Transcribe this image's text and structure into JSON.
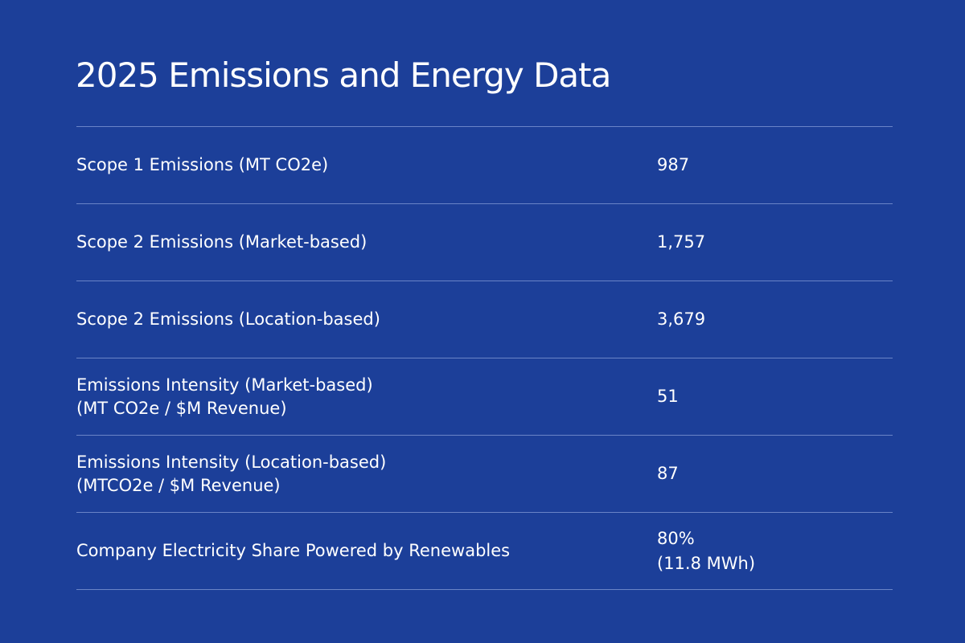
{
  "title": "2025 Emissions and Energy Data",
  "rows": [
    {
      "label": "Scope 1 Emissions (MT CO2e)",
      "value": "987"
    },
    {
      "label": "Scope 2 Emissions (Market-based)",
      "value": "1,757"
    },
    {
      "label": "Scope 2 Emissions (Location-based)",
      "value": "3,679"
    },
    {
      "label": "Emissions Intensity (Market-based)",
      "label_line2": "(MT CO2e / $M Revenue)",
      "value": "51"
    },
    {
      "label": "Emissions Intensity (Location-based)",
      "label_line2": "(MTCO2e / $M Revenue)",
      "value": "87"
    },
    {
      "label": "Company Electricity Share Powered by Renewables",
      "value": "80%",
      "value_line2": "(11.8 MWh)"
    }
  ]
}
